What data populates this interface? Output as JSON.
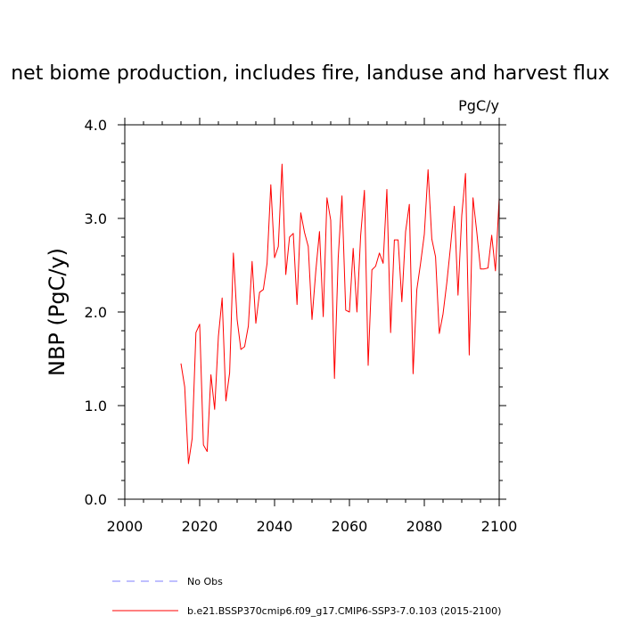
{
  "chart_data": {
    "type": "line",
    "title": "net biome production, includes fire, landuse and harvest flux",
    "units": "PgC/y",
    "xlabel": "",
    "ylabel": "NBP  (PgC/y)",
    "xlim": [
      2000,
      2100
    ],
    "ylim": [
      0.0,
      4.0
    ],
    "xticks": [
      2000,
      2020,
      2040,
      2060,
      2080,
      2100
    ],
    "xtick_labels": [
      "2000",
      "2020",
      "2040",
      "2060",
      "2080",
      "2100"
    ],
    "xminor_step": 5,
    "yticks": [
      0.0,
      1.0,
      2.0,
      3.0,
      4.0
    ],
    "ytick_labels": [
      "0.0",
      "1.0",
      "2.0",
      "3.0",
      "4.0"
    ],
    "yminor_step": 0.2,
    "series": [
      {
        "name": "b.e21.BSSP370cmip6.f09_g17.CMIP6-SSP3-7.0.103 (2015-2100)",
        "color": "#ff0000",
        "style": "solid",
        "x": [
          2015,
          2016,
          2017,
          2018,
          2019,
          2020,
          2021,
          2022,
          2023,
          2024,
          2025,
          2026,
          2027,
          2028,
          2029,
          2030,
          2031,
          2032,
          2033,
          2034,
          2035,
          2036,
          2037,
          2038,
          2039,
          2040,
          2041,
          2042,
          2043,
          2044,
          2045,
          2046,
          2047,
          2048,
          2049,
          2050,
          2051,
          2052,
          2053,
          2054,
          2055,
          2056,
          2057,
          2058,
          2059,
          2060,
          2061,
          2062,
          2063,
          2064,
          2065,
          2066,
          2067,
          2068,
          2069,
          2070,
          2071,
          2072,
          2073,
          2074,
          2075,
          2076,
          2077,
          2078,
          2079,
          2080,
          2081,
          2082,
          2083,
          2084,
          2085,
          2086,
          2087,
          2088,
          2089,
          2090,
          2091,
          2092,
          2093,
          2094,
          2095,
          2096,
          2097,
          2098,
          2099,
          2100
        ],
        "values": [
          1.45,
          1.2,
          0.38,
          0.65,
          1.78,
          1.87,
          0.58,
          0.51,
          1.33,
          0.96,
          1.74,
          2.15,
          1.05,
          1.35,
          2.63,
          1.92,
          1.6,
          1.63,
          1.85,
          2.54,
          1.88,
          2.21,
          2.24,
          2.52,
          3.36,
          2.58,
          2.7,
          3.58,
          2.4,
          2.8,
          2.84,
          2.08,
          3.06,
          2.85,
          2.7,
          1.92,
          2.43,
          2.86,
          1.95,
          3.22,
          2.98,
          1.29,
          2.58,
          3.24,
          2.02,
          2.0,
          2.68,
          2.0,
          2.82,
          3.3,
          1.43,
          2.45,
          2.49,
          2.63,
          2.52,
          3.31,
          1.78,
          2.77,
          2.77,
          2.11,
          2.86,
          3.15,
          1.34,
          2.24,
          2.52,
          2.83,
          3.52,
          2.78,
          2.59,
          1.77,
          1.98,
          2.31,
          2.7,
          3.13,
          2.18,
          3.03,
          3.48,
          1.54,
          3.22,
          2.86,
          2.46,
          2.46,
          2.47,
          2.82,
          2.44,
          3.22
        ]
      },
      {
        "name": "No Obs",
        "color": "#7f7fff",
        "style": "dashed",
        "x": [],
        "values": []
      }
    ],
    "legend": [
      "No Obs",
      "b.e21.BSSP370cmip6.f09_g17.CMIP6-SSP3-7.0.103 (2015-2100)"
    ],
    "legend_placement": "bottom-left"
  }
}
